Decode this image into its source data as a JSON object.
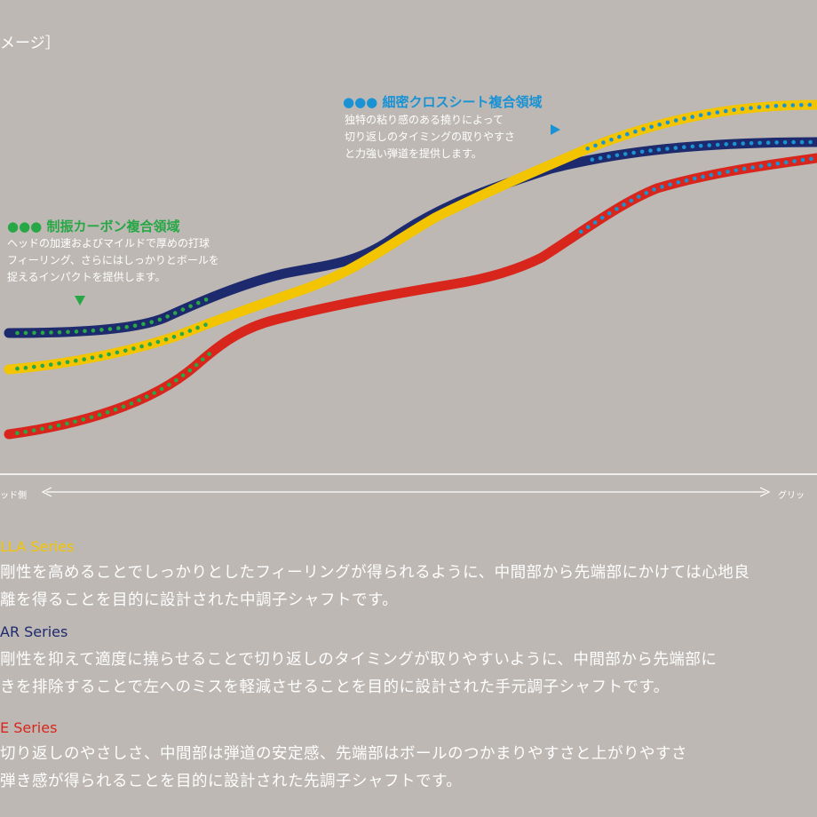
{
  "header": {
    "label": "メージ］"
  },
  "annotations": {
    "carbon": {
      "dots": "●●●",
      "title": "制振カーボン複合領域",
      "lines": [
        "ヘッドの加速およびマイルドで厚めの打球",
        "フィーリング、さらにはしっかりとボールを",
        "捉えるインパクトを提供します。"
      ]
    },
    "cross": {
      "dots": "●●●",
      "title": "細密クロスシート複合領域",
      "lines": [
        "独特の粘り感のある撓りによって",
        "切り返しのタイミングの取りやすさ",
        "と力強い弾道を提供します。"
      ]
    }
  },
  "axis": {
    "left_label": "ッド側",
    "right_label": "グリッ"
  },
  "series": [
    {
      "name": "LLA Series",
      "lines": [
        "剛性を高めることでしっかりとしたフィーリングが得られるように、中間部から先端部にかけては心地良",
        "離を得ることを目的に設計された中調子シャフトです。"
      ]
    },
    {
      "name": "AR Series",
      "lines": [
        "剛性を抑えて適度に撓らせることで切り返しのタイミングが取りやすいように、中間部から先端部に",
        "きを排除することで左へのミスを軽減させることを目的に設計された手元調子シャフトです。"
      ]
    },
    {
      "name": "E Series",
      "lines": [
        "切り返しのやさしさ、中間部は弾道の安定感、先端部はボールのつかまりやすさと上がりやすさ",
        "弾き感が得られることを目的に設計された先調子シャフトです。"
      ]
    }
  ],
  "colors": {
    "background": "#bdb8b4",
    "yellow": "#f2c500",
    "navy": "#1d2a6e",
    "red": "#d9261c",
    "green_dot": "#27a745",
    "blue_dot": "#1a92d4"
  }
}
